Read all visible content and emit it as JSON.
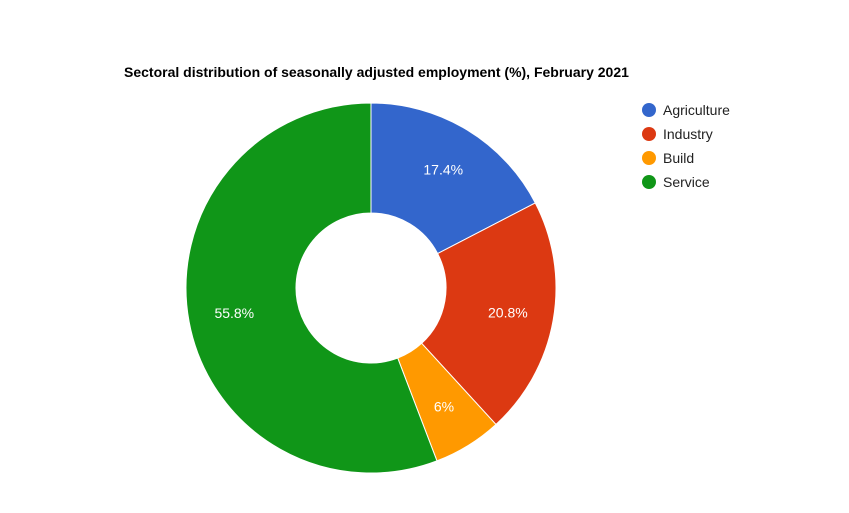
{
  "chart_data": {
    "type": "pie",
    "title": "Sectoral distribution of seasonally adjusted employment (%), February 2021",
    "donut": true,
    "legend_position": "right",
    "categories": [
      "Agriculture",
      "Industry",
      "Build",
      "Service"
    ],
    "values": [
      17.4,
      20.8,
      6.0,
      55.8
    ],
    "value_labels": [
      "17.4%",
      "20.8%",
      "6%",
      "55.8%"
    ],
    "colors": [
      "#3366cc",
      "#dc3912",
      "#ff9900",
      "#109618"
    ]
  }
}
